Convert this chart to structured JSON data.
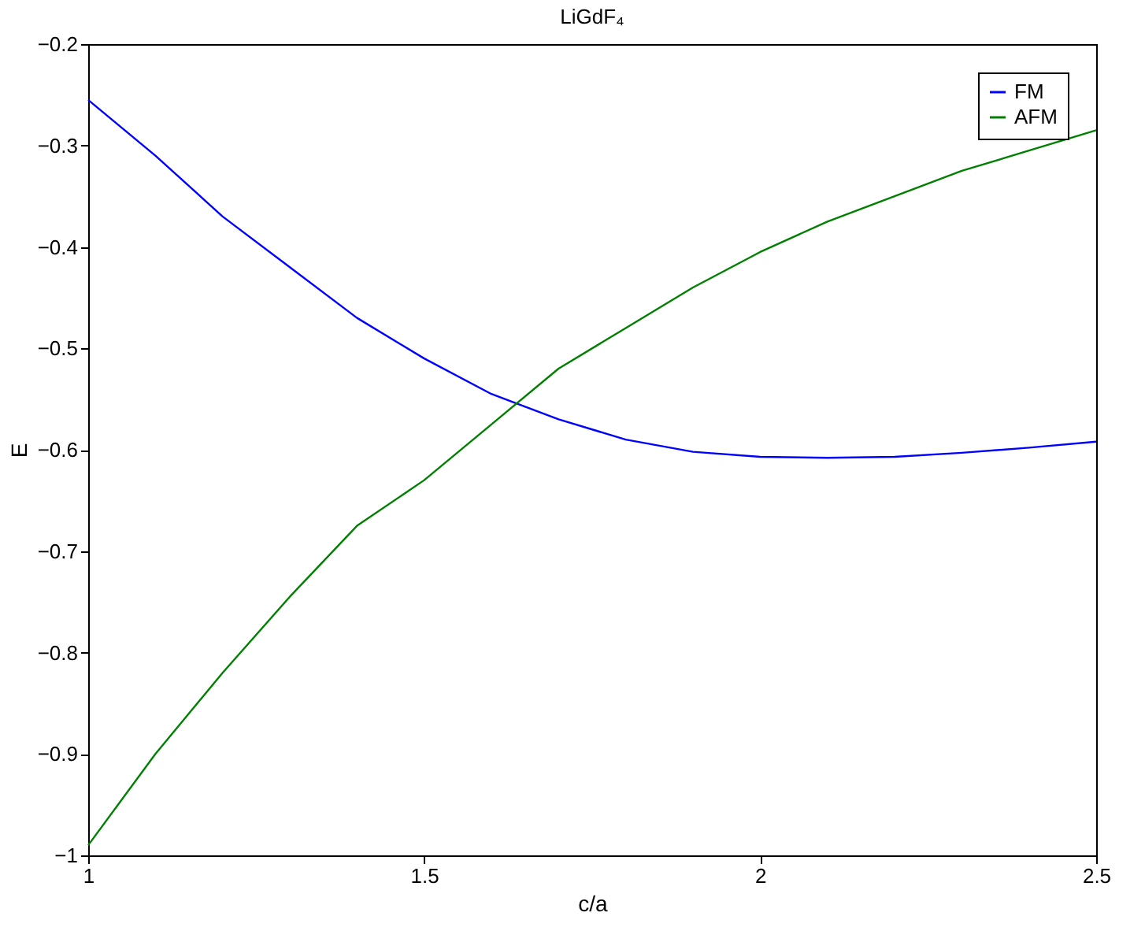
{
  "chart_data": {
    "type": "line",
    "title": "LiGdF₄",
    "xlabel": "c/a",
    "ylabel": "E",
    "x": [
      1.0,
      1.1,
      1.2,
      1.3,
      1.4,
      1.5,
      1.6,
      1.7,
      1.8,
      1.9,
      2.0,
      2.1,
      2.2,
      2.3,
      2.4,
      2.5
    ],
    "series": [
      {
        "name": "FM",
        "color": "#0000ff",
        "values": [
          -0.255,
          -0.31,
          -0.37,
          -0.42,
          -0.47,
          -0.51,
          -0.545,
          -0.57,
          -0.59,
          -0.602,
          -0.607,
          -0.608,
          -0.607,
          -0.603,
          -0.598,
          -0.592
        ]
      },
      {
        "name": "AFM",
        "color": "#008000",
        "values": [
          -0.99,
          -0.9,
          -0.82,
          -0.745,
          -0.675,
          -0.63,
          -0.575,
          -0.52,
          -0.48,
          -0.44,
          -0.405,
          -0.375,
          -0.35,
          -0.325,
          -0.305,
          -0.285
        ]
      }
    ],
    "xlim": [
      1,
      2.5
    ],
    "xticks": [
      1,
      1.5,
      2,
      2.5
    ],
    "ylim": [
      -1,
      -0.2
    ],
    "yticks": [
      -1,
      -0.9,
      -0.8,
      -0.7,
      -0.6,
      -0.5,
      -0.4,
      -0.3,
      -0.2
    ],
    "grid": false,
    "legend": "top right",
    "marker": "none",
    "line_style": "solid"
  }
}
